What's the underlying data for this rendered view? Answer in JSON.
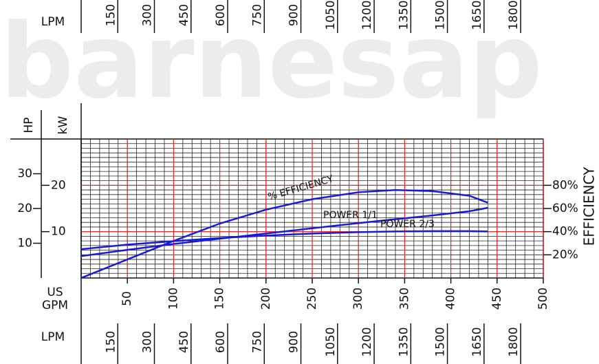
{
  "chart_data": {
    "type": "line",
    "watermark": "barnesap",
    "x_label": [
      "US",
      "GPM"
    ],
    "y_label": "HP",
    "kw_label": "kW",
    "y2_label": "EFFICIENCY",
    "lpm_label": "LPM",
    "xlim": [
      0,
      500
    ],
    "xticks": [
      50,
      100,
      150,
      200,
      250,
      300,
      350,
      400,
      450,
      500
    ],
    "lpm_lim": [
      0,
      1892.7
    ],
    "lpm_ticks": [
      150,
      300,
      450,
      600,
      750,
      900,
      1050,
      1200,
      1350,
      1500,
      1650,
      1800
    ],
    "ylim": [
      0,
      40
    ],
    "yticks": [
      10,
      20,
      30
    ],
    "kw_lim": [
      0,
      30
    ],
    "kw_ticks": [
      10,
      20
    ],
    "y2lim": [
      0,
      120
    ],
    "y2ticks": [
      {
        "value": 20,
        "label": "20%"
      },
      {
        "value": 40,
        "label": "40%"
      },
      {
        "value": 60,
        "label": "60%"
      },
      {
        "value": 80,
        "label": "80%"
      }
    ],
    "grid": true,
    "x": [
      0,
      50,
      100,
      150,
      200,
      250,
      300,
      340,
      380,
      420,
      440
    ],
    "series": [
      {
        "name": "% EFFICIENCY",
        "color": "#1a1ad6",
        "axis": "y2",
        "values": [
          0,
          16,
          32,
          47,
          59,
          68,
          74,
          76,
          75,
          71,
          65
        ]
      },
      {
        "name": "POWER 1/1",
        "color": "#1a1ad6",
        "values": [
          6.3,
          8.1,
          9.8,
          11.3,
          12.8,
          14.3,
          15.8,
          16.9,
          18.0,
          19.2,
          20.2
        ]
      },
      {
        "name": "POWER 2/3",
        "color": "#1a1ad6",
        "values": [
          8.3,
          9.6,
          10.6,
          11.5,
          12.2,
          12.8,
          13.2,
          13.4,
          13.5,
          13.5,
          13.4
        ]
      }
    ]
  }
}
